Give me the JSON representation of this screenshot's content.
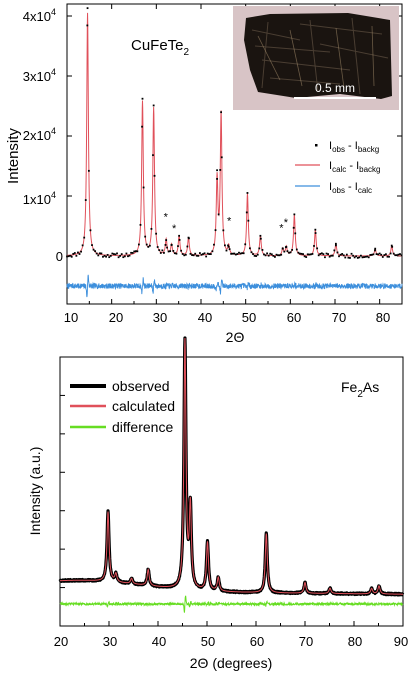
{
  "chart_data": [
    {
      "type": "line",
      "title": "CuFeTe",
      "title_sub": "2",
      "xlabel": "2Θ",
      "ylabel": "Intensity",
      "xlim": [
        10,
        85
      ],
      "ylim": [
        -8000,
        42000
      ],
      "x_ticks": [
        10,
        20,
        30,
        40,
        50,
        60,
        70,
        80
      ],
      "x_tick_labels": [
        "10",
        "20",
        "30",
        "40",
        "50",
        "60",
        "70",
        "80"
      ],
      "y_ticks": [
        0,
        10000,
        20000,
        30000,
        40000
      ],
      "y_tick_labels": [
        "0",
        "1x10",
        "2x10",
        "3x10",
        "4x10"
      ],
      "y_tick_exp": [
        "",
        "4",
        "4",
        "4",
        "4"
      ],
      "background_level": 0,
      "difference_offset": -5000,
      "peaks": [
        {
          "x": 14.6,
          "y": 40500
        },
        {
          "x": 26.9,
          "y": 25700
        },
        {
          "x": 29.4,
          "y": 24600
        },
        {
          "x": 32.2,
          "y": 2600
        },
        {
          "x": 33.4,
          "y": 1800
        },
        {
          "x": 35.1,
          "y": 3300
        },
        {
          "x": 37.2,
          "y": 3000
        },
        {
          "x": 43.6,
          "y": 12600
        },
        {
          "x": 44.5,
          "y": 23500
        },
        {
          "x": 46.2,
          "y": 1500
        },
        {
          "x": 50.4,
          "y": 10300
        },
        {
          "x": 53.3,
          "y": 3300
        },
        {
          "x": 58.3,
          "y": 1200
        },
        {
          "x": 59.1,
          "y": 1500
        },
        {
          "x": 60.9,
          "y": 6800
        },
        {
          "x": 65.6,
          "y": 4300
        },
        {
          "x": 70.2,
          "y": 2000
        },
        {
          "x": 79.0,
          "y": 1200
        },
        {
          "x": 82.7,
          "y": 1700
        }
      ],
      "impurity_marks_x": [
        32.1,
        34.0,
        46.3,
        58.0,
        59.0
      ],
      "impurity_mark_symbol": "*",
      "series": [
        {
          "name": "I",
          "sub": "obs",
          "name2": " - I",
          "sub2": "backg",
          "style": "points",
          "color": "#000000"
        },
        {
          "name": "I",
          "sub": "calc",
          "name2": " - I",
          "sub2": "backg",
          "style": "line",
          "color": "#e0505a"
        },
        {
          "name": "I",
          "sub": "obs",
          "name2": " - I",
          "sub2": "calc",
          "style": "line",
          "color": "#3d8fdc"
        }
      ],
      "inset": {
        "scale_bar_label": "0.5 mm"
      }
    },
    {
      "type": "line",
      "title": "Fe",
      "title_sub": "2",
      "title_suffix": "As",
      "xlabel": "2Θ (degrees)",
      "ylabel": "Intensity (a.u.)",
      "xlim": [
        20,
        90
      ],
      "ylim": [
        0,
        1
      ],
      "x_ticks": [
        20,
        30,
        40,
        50,
        60,
        70,
        80,
        90
      ],
      "x_tick_labels": [
        "20",
        "30",
        "40",
        "50",
        "60",
        "70",
        "80",
        "90"
      ],
      "y_ticks_unlabeled": 6,
      "peaks": [
        {
          "x": 29.8,
          "h": 0.26
        },
        {
          "x": 31.4,
          "h": 0.03
        },
        {
          "x": 34.6,
          "h": 0.02
        },
        {
          "x": 38.0,
          "h": 0.06
        },
        {
          "x": 45.5,
          "h": 0.92
        },
        {
          "x": 46.6,
          "h": 0.3
        },
        {
          "x": 50.1,
          "h": 0.18
        },
        {
          "x": 52.3,
          "h": 0.05
        },
        {
          "x": 62.1,
          "h": 0.22
        },
        {
          "x": 70.0,
          "h": 0.04
        },
        {
          "x": 75.1,
          "h": 0.02
        },
        {
          "x": 83.6,
          "h": 0.02
        },
        {
          "x": 85.1,
          "h": 0.03
        }
      ],
      "series": [
        {
          "name": "observed",
          "color": "#000000"
        },
        {
          "name": "calculated",
          "color": "#e0505a"
        },
        {
          "name": "difference",
          "color": "#66dd22"
        }
      ]
    }
  ]
}
